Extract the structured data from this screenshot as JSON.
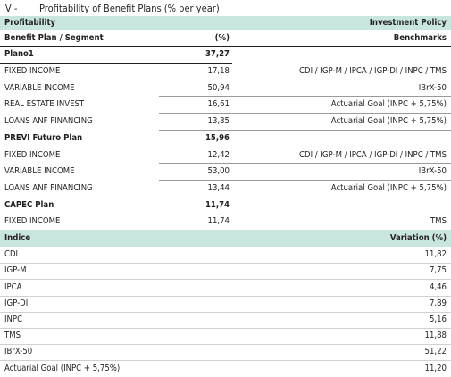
{
  "header": {
    "number": "IV -",
    "title": "Profitability of Benefit Plans (% per year)"
  },
  "table": {
    "section_left": "Profitability",
    "section_right": "Investment Policy",
    "columns": [
      "Benefit Plan / Segment",
      "(%)",
      "Benchmarks"
    ],
    "plans": [
      {
        "name": "Plano1",
        "value": "37,27",
        "segments": [
          {
            "segment": "FIXED INCOME",
            "value": "17,18",
            "benchmark": "CDI / IGP-M / IPCA / IGP-DI / INPC / TMS"
          },
          {
            "segment": "VARIABLE INCOME",
            "value": "50,94",
            "benchmark": "IBrX-50"
          },
          {
            "segment": "REAL ESTATE INVEST",
            "value": "16,61",
            "benchmark": "Actuarial Goal (INPC + 5,75%)"
          },
          {
            "segment": "LOANS ANF FINANCING",
            "value": "13,35",
            "benchmark": "Actuarial Goal (INPC + 5,75%)"
          }
        ]
      },
      {
        "name": "PREVI Futuro Plan",
        "value": "15,96",
        "segments": [
          {
            "segment": "FIXED INCOME",
            "value": "12,42",
            "benchmark": "CDI / IGP-M / IPCA / IGP-DI / INPC / TMS"
          },
          {
            "segment": "VARIABLE INCOME",
            "value": "53,00",
            "benchmark": "IBrX-50"
          },
          {
            "segment": "LOANS ANF FINANCING",
            "value": "13,44",
            "benchmark": "Actuarial Goal  (INPC + 5,75%)"
          }
        ]
      },
      {
        "name": "CAPEC Plan",
        "value": "11,74",
        "segments": [
          {
            "segment": "FIXED INCOME",
            "value": "11,74",
            "benchmark": "TMS"
          }
        ]
      }
    ]
  },
  "indices": {
    "columns": [
      "Indice",
      "Variation  (%)"
    ],
    "rows": [
      [
        "CDI",
        "11,82"
      ],
      [
        "IGP-M",
        "7,75"
      ],
      [
        "IPCA",
        "4,46"
      ],
      [
        "IGP-DI",
        "7,89"
      ],
      [
        "INPC",
        "5,16"
      ],
      [
        "TMS",
        "11,88"
      ],
      [
        "IBrX-50",
        "51,22"
      ],
      [
        "Actuarial Goal (INPC + 5,75%)",
        "11,20"
      ]
    ]
  }
}
